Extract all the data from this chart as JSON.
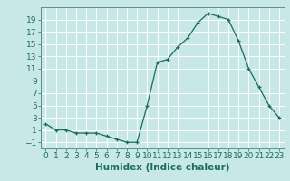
{
  "x": [
    0,
    1,
    2,
    3,
    4,
    5,
    6,
    7,
    8,
    9,
    10,
    11,
    12,
    13,
    14,
    15,
    16,
    17,
    18,
    19,
    20,
    21,
    22,
    23
  ],
  "y_data": [
    2,
    1,
    1,
    0.5,
    0.5,
    0.5,
    0,
    -0.5,
    -1,
    -1,
    5,
    12,
    12.5,
    14.5,
    16,
    18.5,
    20,
    19.5,
    19,
    15.5,
    11,
    8,
    5,
    3
  ],
  "xlabel": "Humidex (Indice chaleur)",
  "xlim": [
    -0.5,
    23.5
  ],
  "ylim": [
    -2,
    21
  ],
  "yticks": [
    -1,
    1,
    3,
    5,
    7,
    9,
    11,
    13,
    15,
    17,
    19
  ],
  "xticks": [
    0,
    1,
    2,
    3,
    4,
    5,
    6,
    7,
    8,
    9,
    10,
    11,
    12,
    13,
    14,
    15,
    16,
    17,
    18,
    19,
    20,
    21,
    22,
    23
  ],
  "line_color": "#1a6b5a",
  "marker": "+",
  "bg_color": "#c8e8e8",
  "grid_color": "#ffffff",
  "tick_color": "#1a6b5a",
  "label_fontsize": 7.5,
  "tick_fontsize": 6.5
}
